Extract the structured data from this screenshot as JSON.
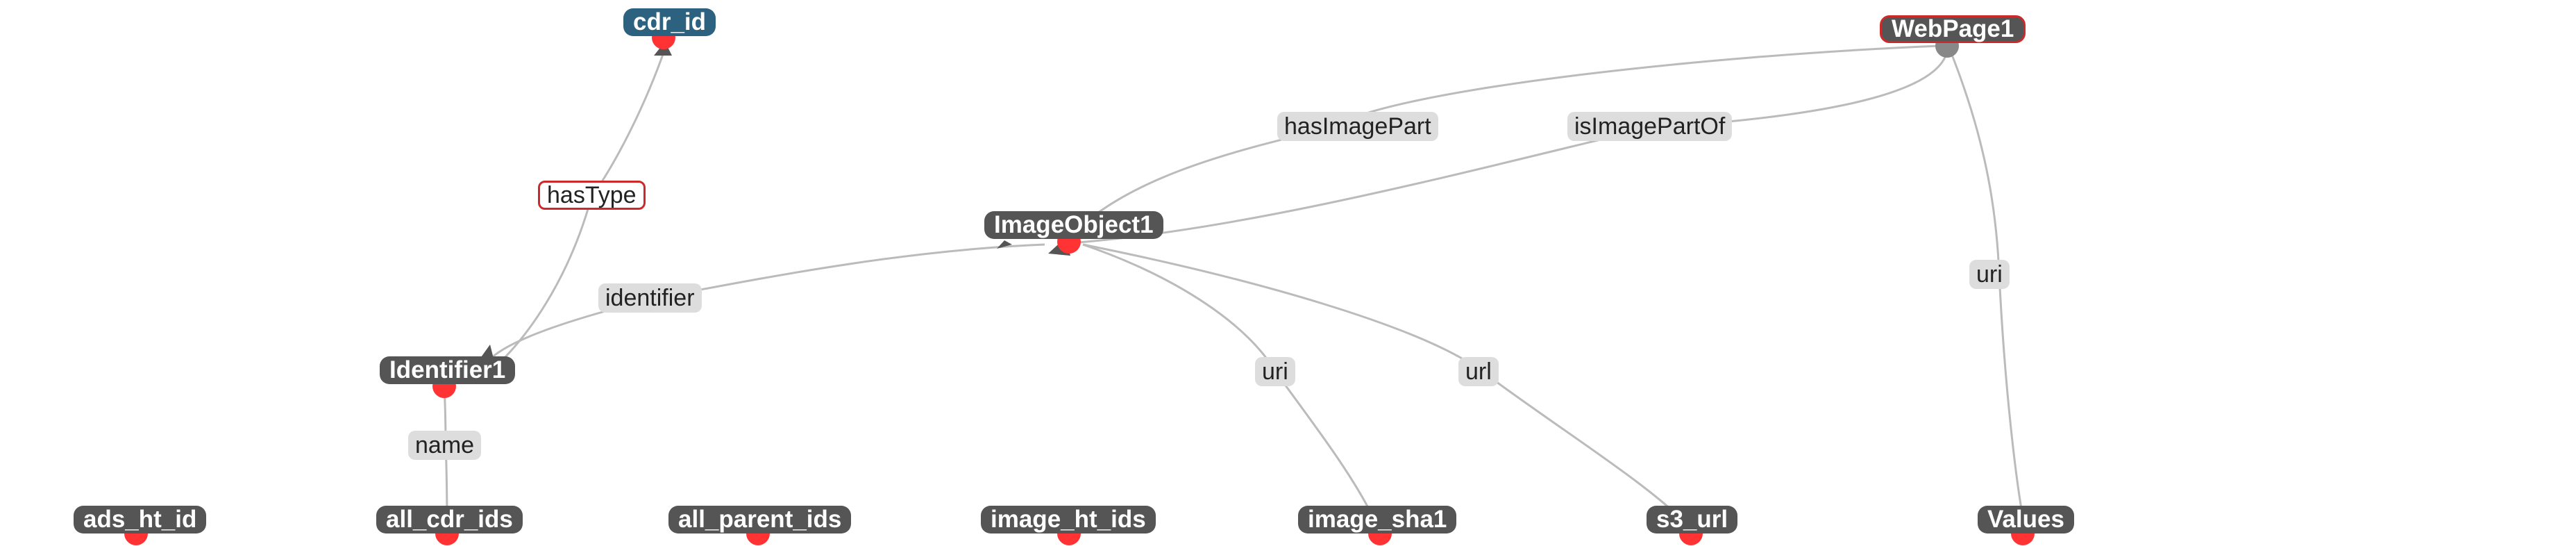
{
  "colors": {
    "node_default": "#555555",
    "node_class_blue": "#2c6280",
    "selection_outline": "#cc2a2a",
    "anchor_dot": "#ff3333",
    "edge": "#bbbbbb",
    "edge_label_bg": "#dddddd"
  },
  "nodes": {
    "cdr_id": "cdr_id",
    "webpage1": "WebPage1",
    "imageobject1": "ImageObject1",
    "identifier1": "Identifier1",
    "ads_ht_id": "ads_ht_id",
    "all_cdr_ids": "all_cdr_ids",
    "all_parent_ids": "all_parent_ids",
    "image_ht_ids": "image_ht_ids",
    "image_sha1": "image_sha1",
    "s3_url": "s3_url",
    "values": "Values"
  },
  "edge_labels": {
    "hasImagePart": "hasImagePart",
    "isImagePartOf": "isImagePartOf",
    "hasType": "hasType",
    "identifier": "identifier",
    "uri_webpage": "uri",
    "uri_image": "uri",
    "url": "url",
    "name": "name"
  }
}
